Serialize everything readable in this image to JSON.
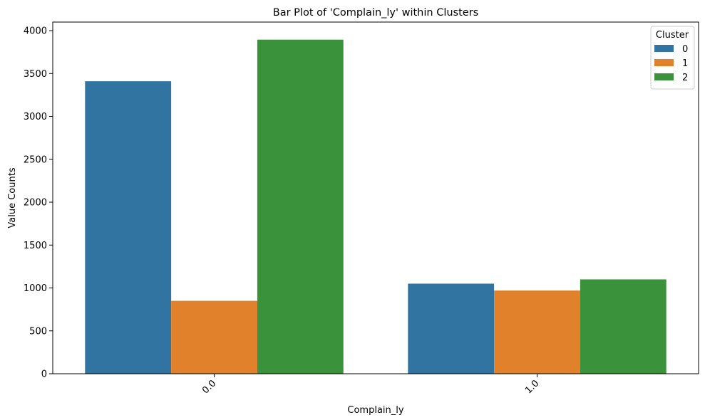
{
  "chart_data": {
    "type": "bar",
    "title": "Bar Plot of 'Complain_ly' within Clusters",
    "xlabel": "Complain_ly",
    "ylabel": "Value Counts",
    "categories": [
      "0.0",
      "1.0"
    ],
    "series": [
      {
        "name": "0",
        "values": [
          3410,
          1050
        ],
        "color": "#3274a1"
      },
      {
        "name": "1",
        "values": [
          850,
          970
        ],
        "color": "#e1812c"
      },
      {
        "name": "2",
        "values": [
          3895,
          1100
        ],
        "color": "#3a923a"
      }
    ],
    "ylim": [
      0,
      4100
    ],
    "yticks": [
      0,
      500,
      1000,
      1500,
      2000,
      2500,
      3000,
      3500,
      4000
    ],
    "grid": false,
    "legend": {
      "title": "Cluster",
      "placement": "top-right"
    },
    "xtick_rotation": 45
  }
}
